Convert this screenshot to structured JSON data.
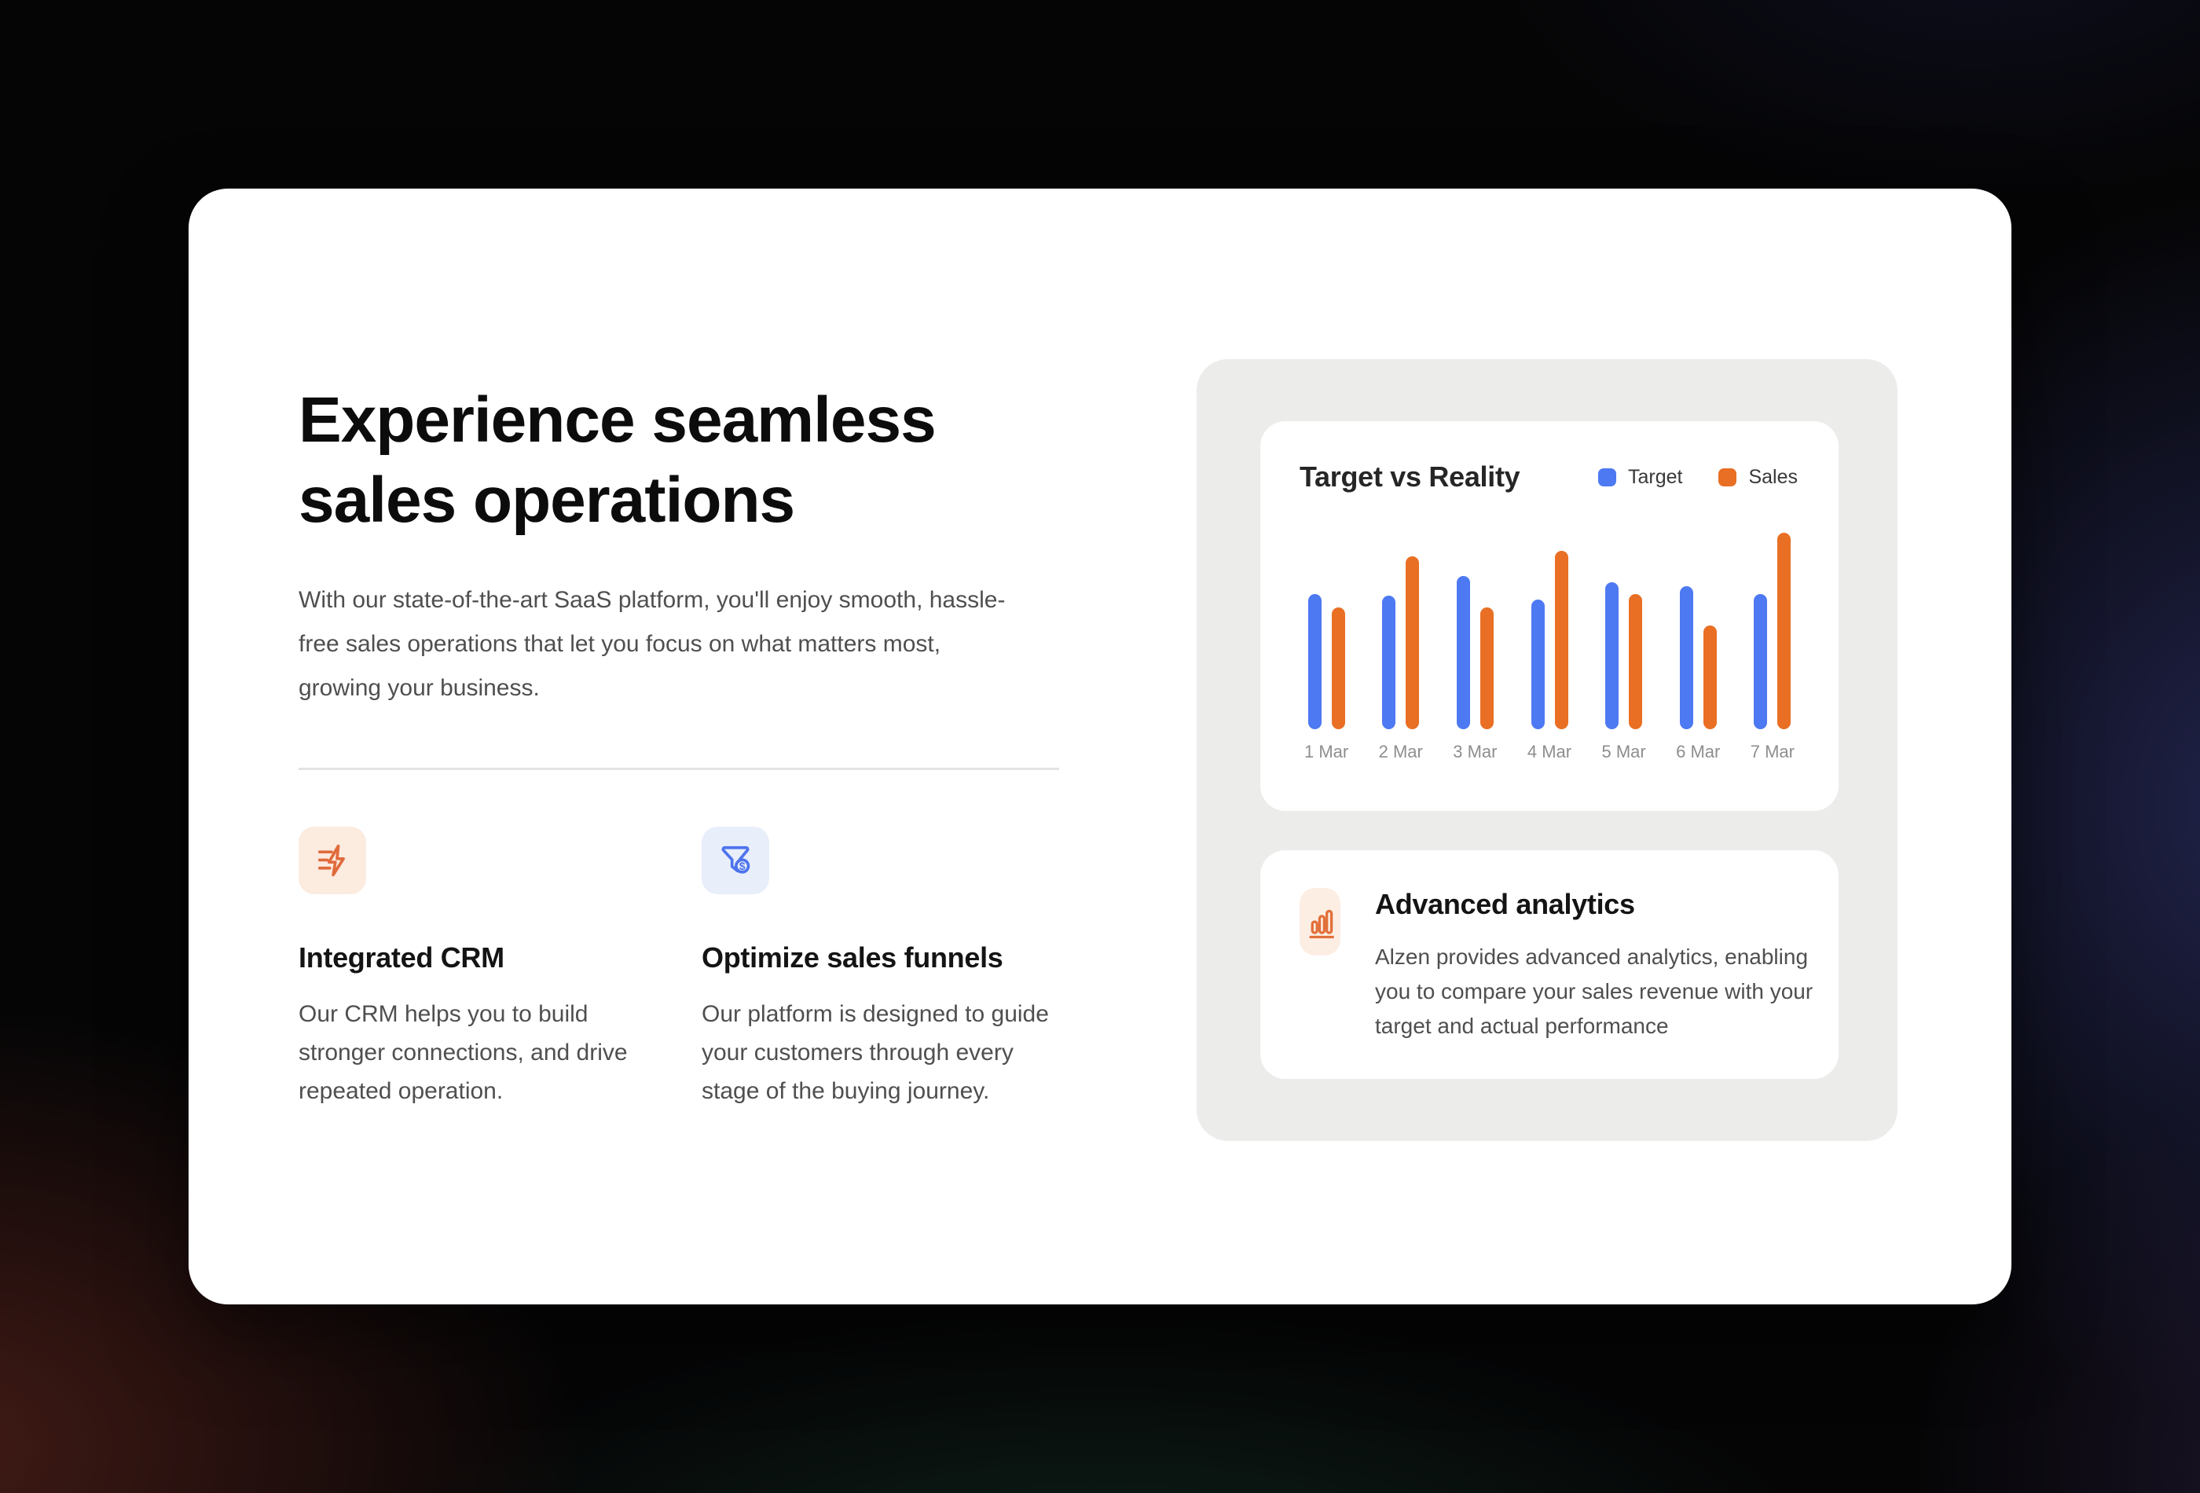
{
  "hero": {
    "heading": "Experience seamless sales operations",
    "paragraph": "With our state-of-the-art SaaS platform, you'll enjoy smooth, hassle-free sales operations that let you focus on what matters most, growing your business.",
    "features": [
      {
        "icon": "zap-lines-icon",
        "icon_bg": "#fcebdf",
        "accent": "#e06b3c",
        "title": "Integrated CRM",
        "description": "Our CRM helps you to build stronger connections, and drive repeated operation."
      },
      {
        "icon": "funnel-dollar-icon",
        "icon_bg": "#e9eefb",
        "accent": "#4d74ec",
        "title": "Optimize sales funnels",
        "description": "Our platform is designed to guide your customers through every stage of the buying journey."
      }
    ]
  },
  "showcase": {
    "analytics_card": {
      "icon": "bar-chart-icon",
      "icon_bg": "#fdeee4",
      "accent": "#e2703a",
      "title": "Advanced analytics",
      "description": "Alzen provides advanced analytics, enabling you to compare your sales revenue with your target and actual performance"
    }
  },
  "chart_data": {
    "type": "bar",
    "title": "Target vs Reality",
    "categories": [
      "1 Mar",
      "2 Mar",
      "3 Mar",
      "4 Mar",
      "5 Mar",
      "6 Mar",
      "7 Mar"
    ],
    "series": [
      {
        "name": "Target",
        "color": "#4d79f2",
        "values": [
          69,
          68,
          78,
          66,
          75,
          73,
          69
        ]
      },
      {
        "name": "Sales",
        "color": "#e96f24",
        "values": [
          62,
          88,
          62,
          91,
          69,
          53,
          100
        ]
      }
    ],
    "ylim": [
      0,
      100
    ],
    "grid": false,
    "y_axis_shown": false,
    "legend_position": "top-right"
  }
}
